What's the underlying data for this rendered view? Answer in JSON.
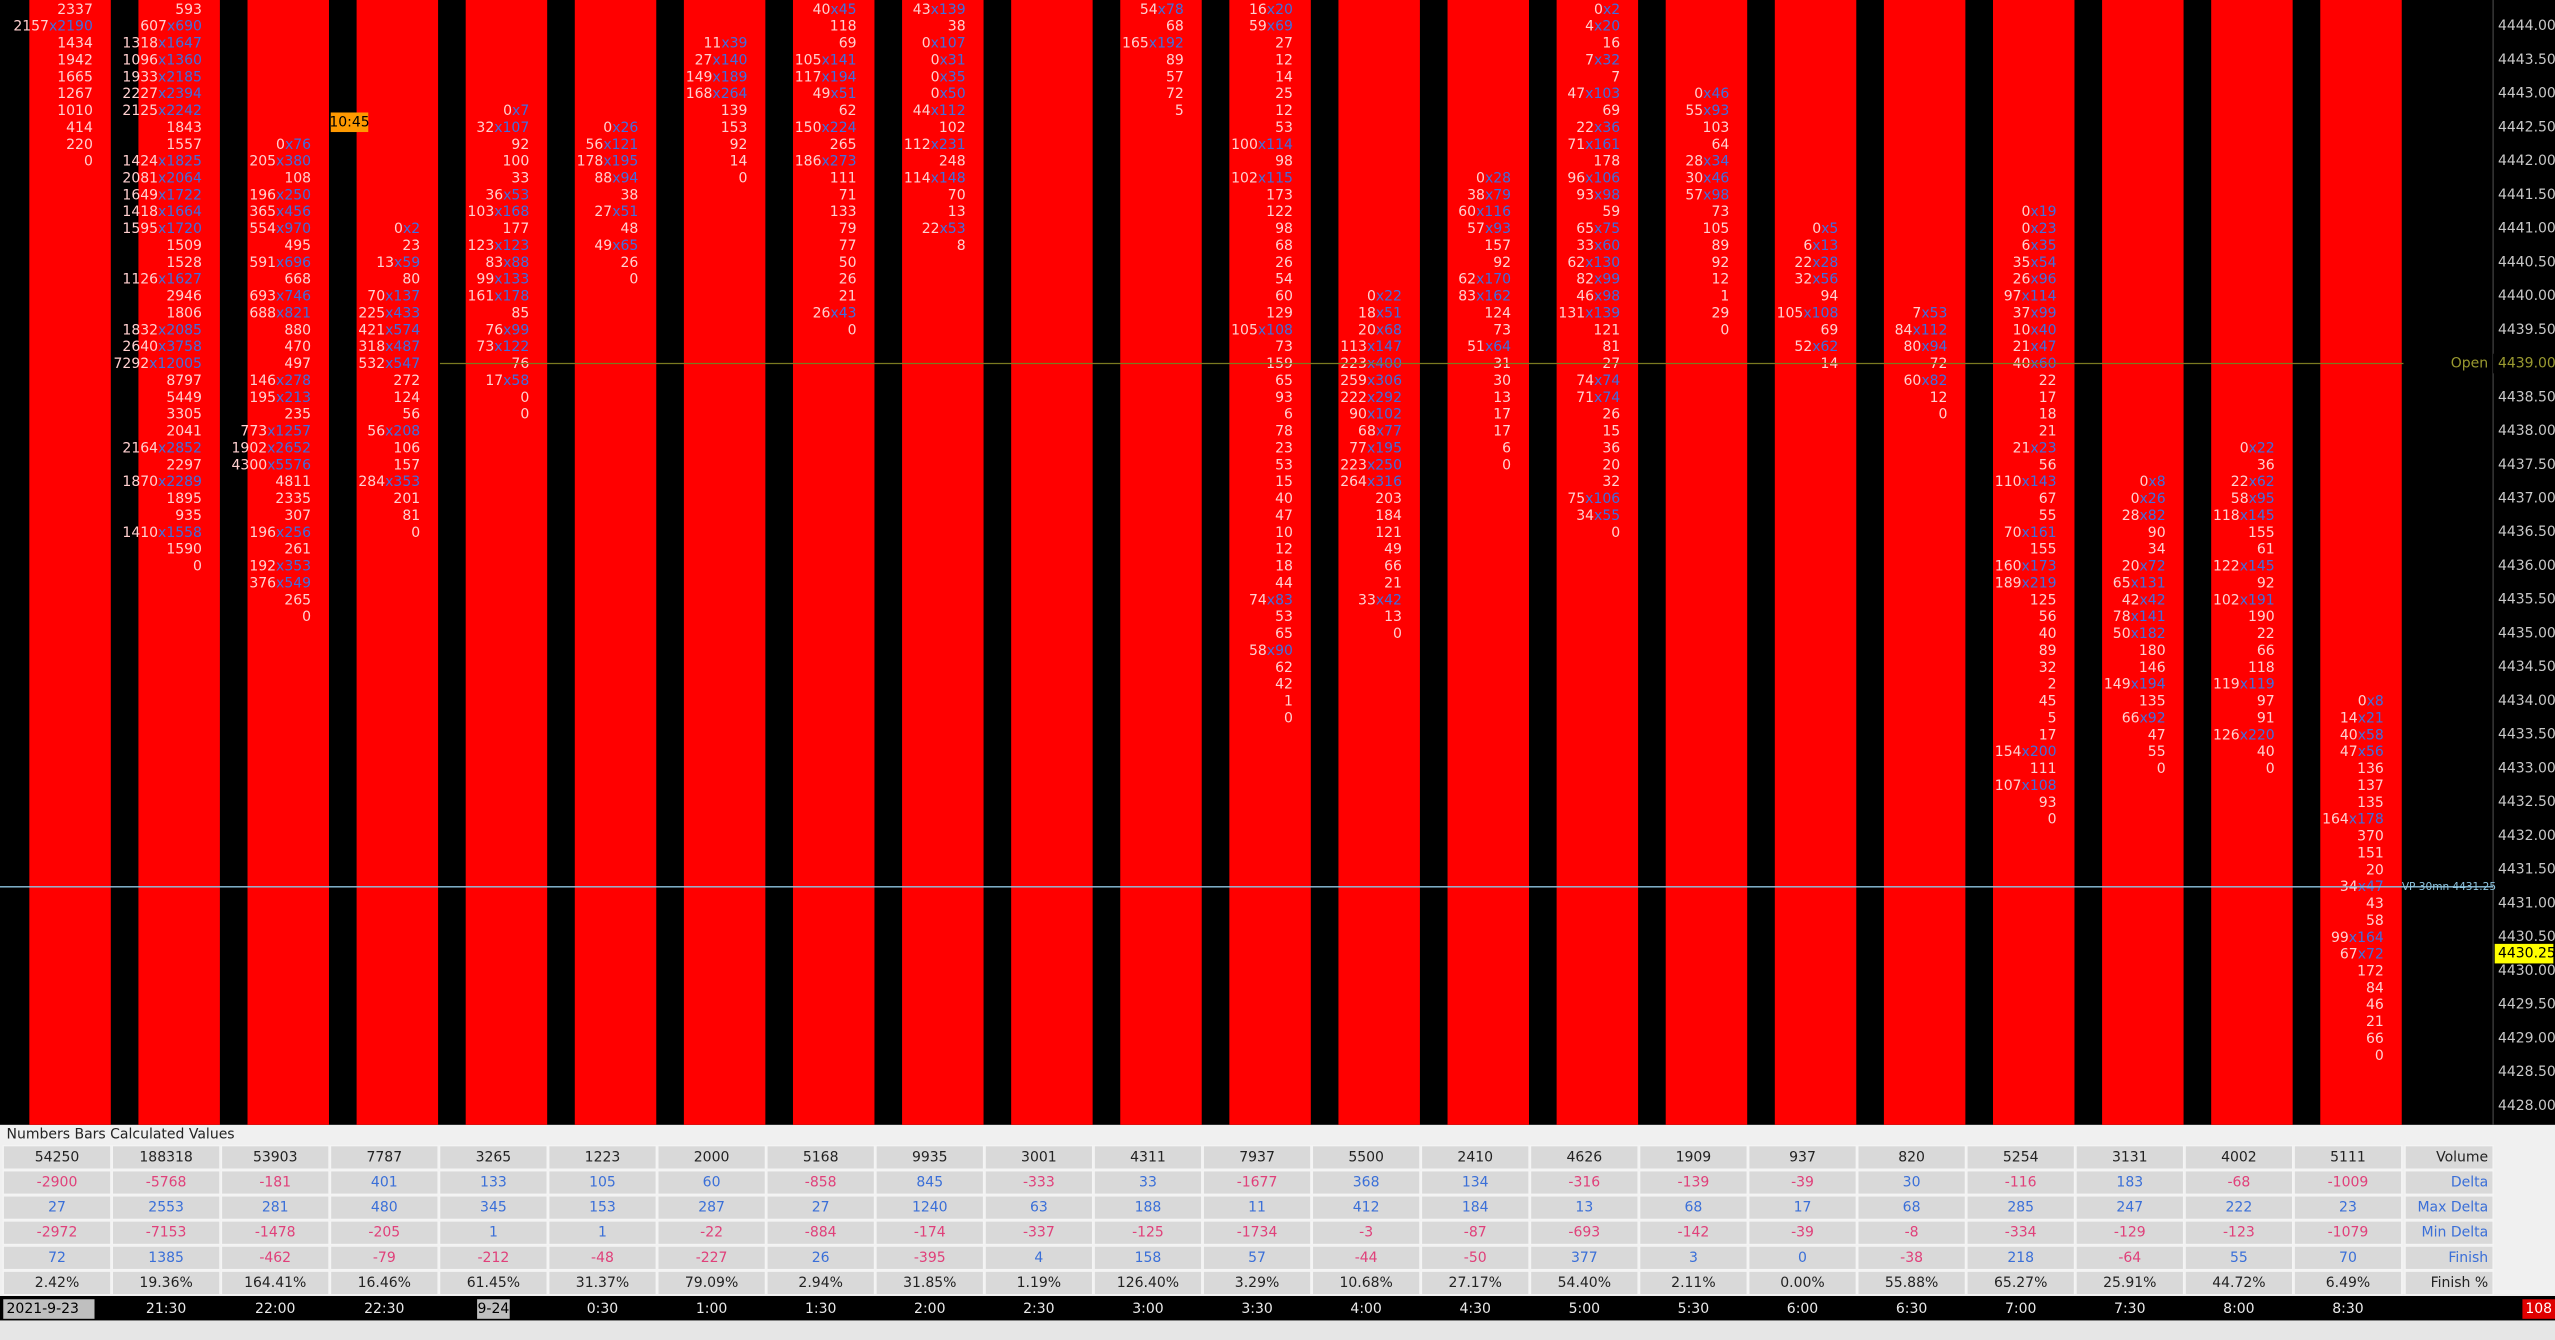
{
  "price_axis": [
    "4444.00",
    "4443.50",
    "4443.00",
    "4442.50",
    "4442.00",
    "4441.50",
    "4441.00",
    "4440.50",
    "4440.00",
    "4439.50",
    "4439.00",
    "4438.50",
    "4438.00",
    "4437.50",
    "4437.00",
    "4436.50",
    "4436.00",
    "4435.50",
    "4435.00",
    "4434.50",
    "4434.00",
    "4433.50",
    "4433.00",
    "4432.50",
    "4432.00",
    "4431.50",
    "4431.00",
    "4430.50",
    "4430.00",
    "4429.50",
    "4429.00",
    "4428.50",
    "4428.00"
  ],
  "markers": {
    "open_label": "Open",
    "open_price": "4439.00",
    "vp_label": "VP 30mn",
    "vp_price": "4431.25",
    "last_price": "4430.25",
    "time_flag": "10:45",
    "corner": "108"
  },
  "footprint": [
    [
      "2337",
      "2157x2190",
      "1434",
      "1942",
      "1665",
      "1267",
      "1010",
      "414",
      "220",
      "0"
    ],
    [
      "593",
      "607x690",
      "1318x1647",
      "1096x1360",
      "1933x2185",
      "2227x2394",
      "2125x2242",
      "1843",
      "1557",
      "1424x1825",
      "2081x2064",
      "1649x1722",
      "1418x1664",
      "1595x1720",
      "1509",
      "1528",
      "1126x1627",
      "2946",
      "1806",
      "1832x2085",
      "2640x3758",
      "7292x12005",
      "8797",
      "5449",
      "3305",
      "2041",
      "2164x2852",
      "2297",
      "1870x2289",
      "1895",
      "935",
      "1410x1558",
      "1590",
      "0"
    ],
    [
      "0x76",
      "205x380",
      "108",
      "196x250",
      "365x456",
      "554x970",
      "495",
      "591x696",
      "668",
      "693x746",
      "688x821",
      "880",
      "470",
      "497",
      "146x278",
      "195x213",
      "235",
      "773x1257",
      "1902x2652",
      "4300x5576",
      "4811",
      "2335",
      "307",
      "196x256",
      "261",
      "192x353",
      "376x549",
      "265",
      "0"
    ],
    [
      "0x2",
      "23",
      "13x59",
      "80",
      "70x137",
      "225x433",
      "421x574",
      "318x487",
      "532x547",
      "272",
      "124",
      "56",
      "56x208",
      "106",
      "157",
      "284x353",
      "201",
      "81",
      "0"
    ],
    [
      "0x7",
      "32x107",
      "92",
      "100",
      "33",
      "36x53",
      "103x168",
      "177",
      "123x123",
      "83x88",
      "99x133",
      "161x178",
      "85",
      "76x99",
      "73x122",
      "76",
      "17x58",
      "0",
      "0"
    ],
    [
      "0x26",
      "56x121",
      "178x195",
      "88x94",
      "38",
      "27x51",
      "48",
      "49x65",
      "26",
      "0"
    ],
    [
      "11x39",
      "27x140",
      "149x189",
      "168x264",
      "139",
      "153",
      "92",
      "14",
      "0"
    ],
    [
      "40x45",
      "118",
      "69",
      "105x141",
      "117x194",
      "49x51",
      "62",
      "150x224",
      "265",
      "186x273",
      "111",
      "71",
      "133",
      "79",
      "77",
      "50",
      "26",
      "21",
      "26x43",
      "0"
    ],
    [
      "43x139",
      "38",
      "0x107",
      "0x31",
      "0x35",
      "0x50",
      "44x112",
      "102",
      "112x231",
      "248",
      "114x148",
      "70",
      "13",
      "22x53",
      "8"
    ],
    [],
    [
      "54x78",
      "68",
      "165x192",
      "89",
      "57",
      "72",
      "5"
    ],
    [
      "16x20",
      "59x69",
      "27",
      "12",
      "14",
      "25",
      "12",
      "53",
      "100x114",
      "98",
      "102x115",
      "173",
      "122",
      "98",
      "68",
      "26",
      "54",
      "60",
      "129",
      "105x108",
      "73",
      "159",
      "65",
      "93",
      "6",
      "78",
      "23",
      "53",
      "15",
      "40",
      "47",
      "10",
      "12",
      "18",
      "44",
      "74x83",
      "53",
      "65",
      "58x90",
      "62",
      "42",
      "1",
      "0"
    ],
    [
      "0x22",
      "18x51",
      "20x68",
      "113x147",
      "223x400",
      "259x306",
      "222x292",
      "90x102",
      "68x77",
      "77x195",
      "223x250",
      "264x316",
      "203",
      "184",
      "121",
      "49",
      "66",
      "21",
      "33x42",
      "13",
      "0"
    ],
    [
      "0x28",
      "38x79",
      "60x116",
      "57x93",
      "157",
      "92",
      "62x170",
      "83x162",
      "124",
      "73",
      "51x64",
      "31",
      "30",
      "13",
      "17",
      "17",
      "6",
      "0"
    ],
    [
      "0x2",
      "4x20",
      "16",
      "7x32",
      "7",
      "47x103",
      "69",
      "22x36",
      "71x161",
      "178",
      "96x106",
      "93x98",
      "59",
      "65x75",
      "33x60",
      "62x130",
      "82x99",
      "46x98",
      "131x139",
      "121",
      "81",
      "27",
      "74x74",
      "71x74",
      "26",
      "15",
      "36",
      "20",
      "32",
      "75x106",
      "34x55",
      "0"
    ],
    [
      "0x46",
      "55x93",
      "103",
      "64",
      "28x34",
      "30x46",
      "57x98",
      "73",
      "105",
      "89",
      "92",
      "12",
      "1",
      "29",
      "0"
    ],
    [
      "0x5",
      "6x13",
      "22x28",
      "32x56",
      "94",
      "105x108",
      "69",
      "52x62",
      "14"
    ],
    [
      "7x53",
      "84x112",
      "80x94",
      "72",
      "60x82",
      "12",
      "0"
    ],
    [
      "0x19",
      "0x23",
      "6x35",
      "35x54",
      "26x96",
      "97x114",
      "37x99",
      "10x40",
      "21x47",
      "40x60",
      "22",
      "17",
      "18",
      "21",
      "21x23",
      "56",
      "110x143",
      "67",
      "55",
      "70x161",
      "155",
      "160x173",
      "189x219",
      "125",
      "56",
      "40",
      "89",
      "32",
      "2",
      "45",
      "5",
      "17",
      "154x200",
      "111",
      "107x108",
      "93",
      "0"
    ],
    [
      "0x8",
      "0x26",
      "28x82",
      "90",
      "34",
      "20x72",
      "65x131",
      "42x42",
      "78x141",
      "50x182",
      "180",
      "146",
      "149x194",
      "135",
      "66x92",
      "47",
      "55",
      "0"
    ],
    [
      "0x22",
      "36",
      "22x62",
      "58x95",
      "118x145",
      "155",
      "61",
      "122x145",
      "92",
      "102x191",
      "190",
      "22",
      "66",
      "118",
      "119x119",
      "97",
      "91",
      "126x220",
      "40",
      "0"
    ],
    [
      "0x8",
      "14x21",
      "40x58",
      "47x56",
      "136",
      "137",
      "135",
      "164x178",
      "370",
      "151",
      "20",
      "34x47",
      "43",
      "58",
      "99x164",
      "67x72",
      "172",
      "84",
      "46",
      "21",
      "66",
      "0"
    ]
  ],
  "table": {
    "title": "Numbers Bars Calculated Values",
    "rows": [
      {
        "label": "Volume",
        "values": [
          "54250",
          "188318",
          "53903",
          "7787",
          "3265",
          "1223",
          "2000",
          "5168",
          "9935",
          "3001",
          "4311",
          "7937",
          "5500",
          "2410",
          "4626",
          "1909",
          "937",
          "820",
          "5254",
          "3131",
          "4002",
          "5111"
        ]
      },
      {
        "label": "Delta",
        "values": [
          "-2900",
          "-5768",
          "-181",
          "401",
          "133",
          "105",
          "60",
          "-858",
          "845",
          "-333",
          "33",
          "-1677",
          "368",
          "134",
          "-316",
          "-139",
          "-39",
          "30",
          "-116",
          "183",
          "-68",
          "-1009"
        ]
      },
      {
        "label": "Max Delta",
        "values": [
          "27",
          "2553",
          "281",
          "480",
          "345",
          "153",
          "287",
          "27",
          "1240",
          "63",
          "188",
          "11",
          "412",
          "184",
          "13",
          "68",
          "17",
          "68",
          "285",
          "247",
          "222",
          "23"
        ]
      },
      {
        "label": "Min Delta",
        "values": [
          "-2972",
          "-7153",
          "-1478",
          "-205",
          "1",
          "1",
          "-22",
          "-884",
          "-174",
          "-337",
          "-125",
          "-1734",
          "-3",
          "-87",
          "-693",
          "-142",
          "-39",
          "-8",
          "-334",
          "-129",
          "-123",
          "-1079"
        ]
      },
      {
        "label": "Finish",
        "values": [
          "72",
          "1385",
          "-462",
          "-79",
          "-212",
          "-48",
          "-227",
          "26",
          "-395",
          "4",
          "158",
          "57",
          "-44",
          "-50",
          "377",
          "3",
          "0",
          "-38",
          "218",
          "-64",
          "55",
          "70"
        ]
      },
      {
        "label": "Finish %",
        "values": [
          "2.42%",
          "19.36%",
          "164.41%",
          "16.46%",
          "61.45%",
          "31.37%",
          "79.09%",
          "2.94%",
          "31.85%",
          "1.19%",
          "126.40%",
          "3.29%",
          "10.68%",
          "27.17%",
          "54.40%",
          "2.11%",
          "0.00%",
          "55.88%",
          "65.27%",
          "25.91%",
          "44.72%",
          "6.49%"
        ]
      }
    ]
  },
  "time_axis": [
    "2021-9-23",
    "21:30",
    "22:00",
    "22:30",
    "9-24",
    "0:30",
    "1:00",
    "1:30",
    "2:00",
    "2:30",
    "3:00",
    "3:30",
    "4:00",
    "4:30",
    "5:00",
    "5:30",
    "6:00",
    "6:30",
    "7:00",
    "7:30",
    "8:00",
    "8:30"
  ]
}
